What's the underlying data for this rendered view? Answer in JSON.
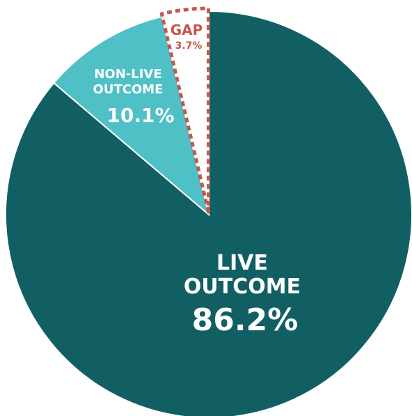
{
  "chart_data": {
    "type": "pie",
    "categories": [
      "LIVE OUTCOME",
      "NON-LIVE OUTCOME",
      "GAP"
    ],
    "values": [
      86.2,
      10.1,
      3.7
    ],
    "value_labels": [
      "86.2%",
      "10.1%",
      "3.7%"
    ],
    "label_lines": [
      [
        "LIVE",
        "OUTCOME"
      ],
      [
        "NON-LIVE",
        "OUTCOME"
      ],
      [
        "GAP"
      ]
    ],
    "colors": [
      "#125f63",
      "#4fc0c6",
      "#ffffff"
    ],
    "gap_outline_color": "#c4574a",
    "start": "12 o'clock",
    "direction": "clockwise"
  }
}
